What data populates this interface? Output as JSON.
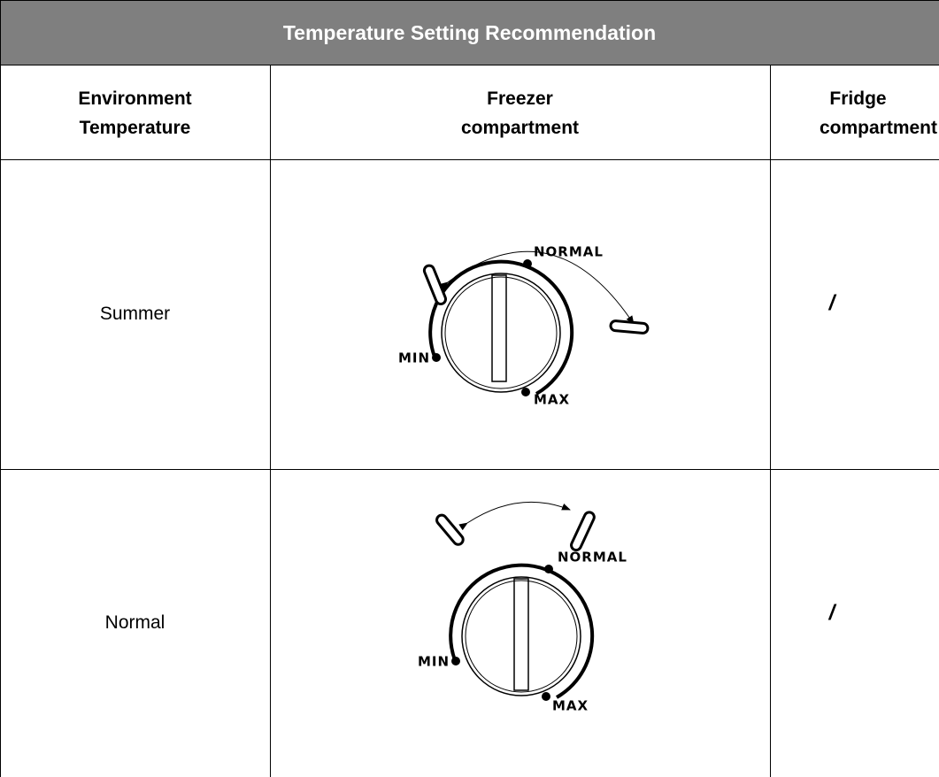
{
  "header": {
    "title": "Temperature Setting Recommendation"
  },
  "table": {
    "columns": [
      [
        "Environment",
        "Temperature"
      ],
      [
        "Freezer",
        "compartment"
      ],
      [
        "Fridge",
        "compartment"
      ]
    ],
    "rows": [
      {
        "environment": "Summer",
        "freezer_dial": {
          "normal": "NORMAL",
          "min": "MIN",
          "max": "MAX"
        },
        "fridge": "/"
      },
      {
        "environment": "Normal",
        "freezer_dial": {
          "normal": "NORMAL",
          "min": "MIN",
          "max": "MAX"
        },
        "fridge": "/"
      }
    ]
  }
}
